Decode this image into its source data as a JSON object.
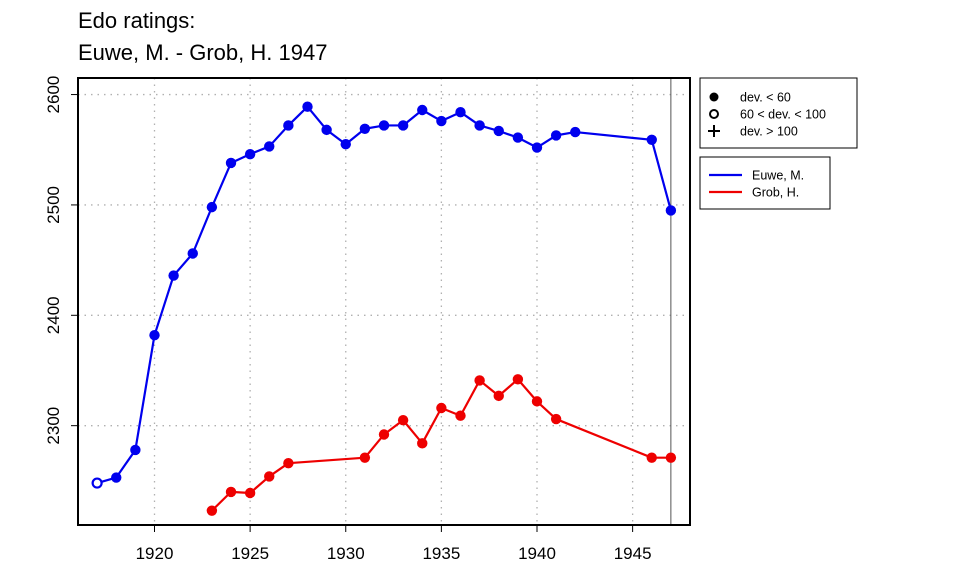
{
  "title": {
    "line1": "Edo ratings:",
    "line2": "Euwe, M. - Grob, H. 1947"
  },
  "chart_data": {
    "type": "line",
    "xlim": [
      1916,
      1948
    ],
    "ylim": [
      2210,
      2615
    ],
    "x_ticks": [
      1920,
      1925,
      1930,
      1935,
      1940,
      1945
    ],
    "y_ticks": [
      2300,
      2400,
      2500,
      2600
    ],
    "grid": true,
    "vertical_line_x": 1947,
    "marker_legend": [
      {
        "symbol": "filled-circle",
        "label": "dev. < 60"
      },
      {
        "symbol": "open-circle",
        "label": "60 < dev. < 100"
      },
      {
        "symbol": "plus",
        "label": "dev. > 100"
      }
    ],
    "series": [
      {
        "name": "Euwe, M.",
        "color": "#0000ee",
        "points": [
          {
            "x": 1917,
            "y": 2248,
            "marker": "open"
          },
          {
            "x": 1918,
            "y": 2253,
            "marker": "filled"
          },
          {
            "x": 1919,
            "y": 2278,
            "marker": "filled"
          },
          {
            "x": 1920,
            "y": 2382,
            "marker": "filled"
          },
          {
            "x": 1921,
            "y": 2436,
            "marker": "filled"
          },
          {
            "x": 1922,
            "y": 2456,
            "marker": "filled"
          },
          {
            "x": 1923,
            "y": 2498,
            "marker": "filled"
          },
          {
            "x": 1924,
            "y": 2538,
            "marker": "filled"
          },
          {
            "x": 1925,
            "y": 2546,
            "marker": "filled"
          },
          {
            "x": 1926,
            "y": 2553,
            "marker": "filled"
          },
          {
            "x": 1927,
            "y": 2572,
            "marker": "filled"
          },
          {
            "x": 1928,
            "y": 2589,
            "marker": "filled"
          },
          {
            "x": 1929,
            "y": 2568,
            "marker": "filled"
          },
          {
            "x": 1930,
            "y": 2555,
            "marker": "filled"
          },
          {
            "x": 1931,
            "y": 2569,
            "marker": "filled"
          },
          {
            "x": 1932,
            "y": 2572,
            "marker": "filled"
          },
          {
            "x": 1933,
            "y": 2572,
            "marker": "filled"
          },
          {
            "x": 1934,
            "y": 2586,
            "marker": "filled"
          },
          {
            "x": 1935,
            "y": 2576,
            "marker": "filled"
          },
          {
            "x": 1936,
            "y": 2584,
            "marker": "filled"
          },
          {
            "x": 1937,
            "y": 2572,
            "marker": "filled"
          },
          {
            "x": 1938,
            "y": 2567,
            "marker": "filled"
          },
          {
            "x": 1939,
            "y": 2561,
            "marker": "filled"
          },
          {
            "x": 1940,
            "y": 2552,
            "marker": "filled"
          },
          {
            "x": 1941,
            "y": 2563,
            "marker": "filled"
          },
          {
            "x": 1942,
            "y": 2566,
            "marker": "filled"
          },
          {
            "x": 1946,
            "y": 2559,
            "marker": "filled"
          },
          {
            "x": 1947,
            "y": 2495,
            "marker": "filled"
          }
        ]
      },
      {
        "name": "Grob, H.",
        "color": "#ee0000",
        "points": [
          {
            "x": 1923,
            "y": 2223,
            "marker": "filled"
          },
          {
            "x": 1924,
            "y": 2240,
            "marker": "filled"
          },
          {
            "x": 1925,
            "y": 2239,
            "marker": "filled"
          },
          {
            "x": 1926,
            "y": 2254,
            "marker": "filled"
          },
          {
            "x": 1927,
            "y": 2266,
            "marker": "filled"
          },
          {
            "x": 1931,
            "y": 2271,
            "marker": "filled"
          },
          {
            "x": 1932,
            "y": 2292,
            "marker": "filled"
          },
          {
            "x": 1933,
            "y": 2305,
            "marker": "filled"
          },
          {
            "x": 1934,
            "y": 2284,
            "marker": "filled"
          },
          {
            "x": 1935,
            "y": 2316,
            "marker": "filled"
          },
          {
            "x": 1936,
            "y": 2309,
            "marker": "filled"
          },
          {
            "x": 1937,
            "y": 2341,
            "marker": "filled"
          },
          {
            "x": 1938,
            "y": 2327,
            "marker": "filled"
          },
          {
            "x": 1939,
            "y": 2342,
            "marker": "filled"
          },
          {
            "x": 1940,
            "y": 2322,
            "marker": "filled"
          },
          {
            "x": 1941,
            "y": 2306,
            "marker": "filled"
          },
          {
            "x": 1946,
            "y": 2271,
            "marker": "filled"
          },
          {
            "x": 1947,
            "y": 2271,
            "marker": "filled"
          }
        ]
      }
    ]
  }
}
